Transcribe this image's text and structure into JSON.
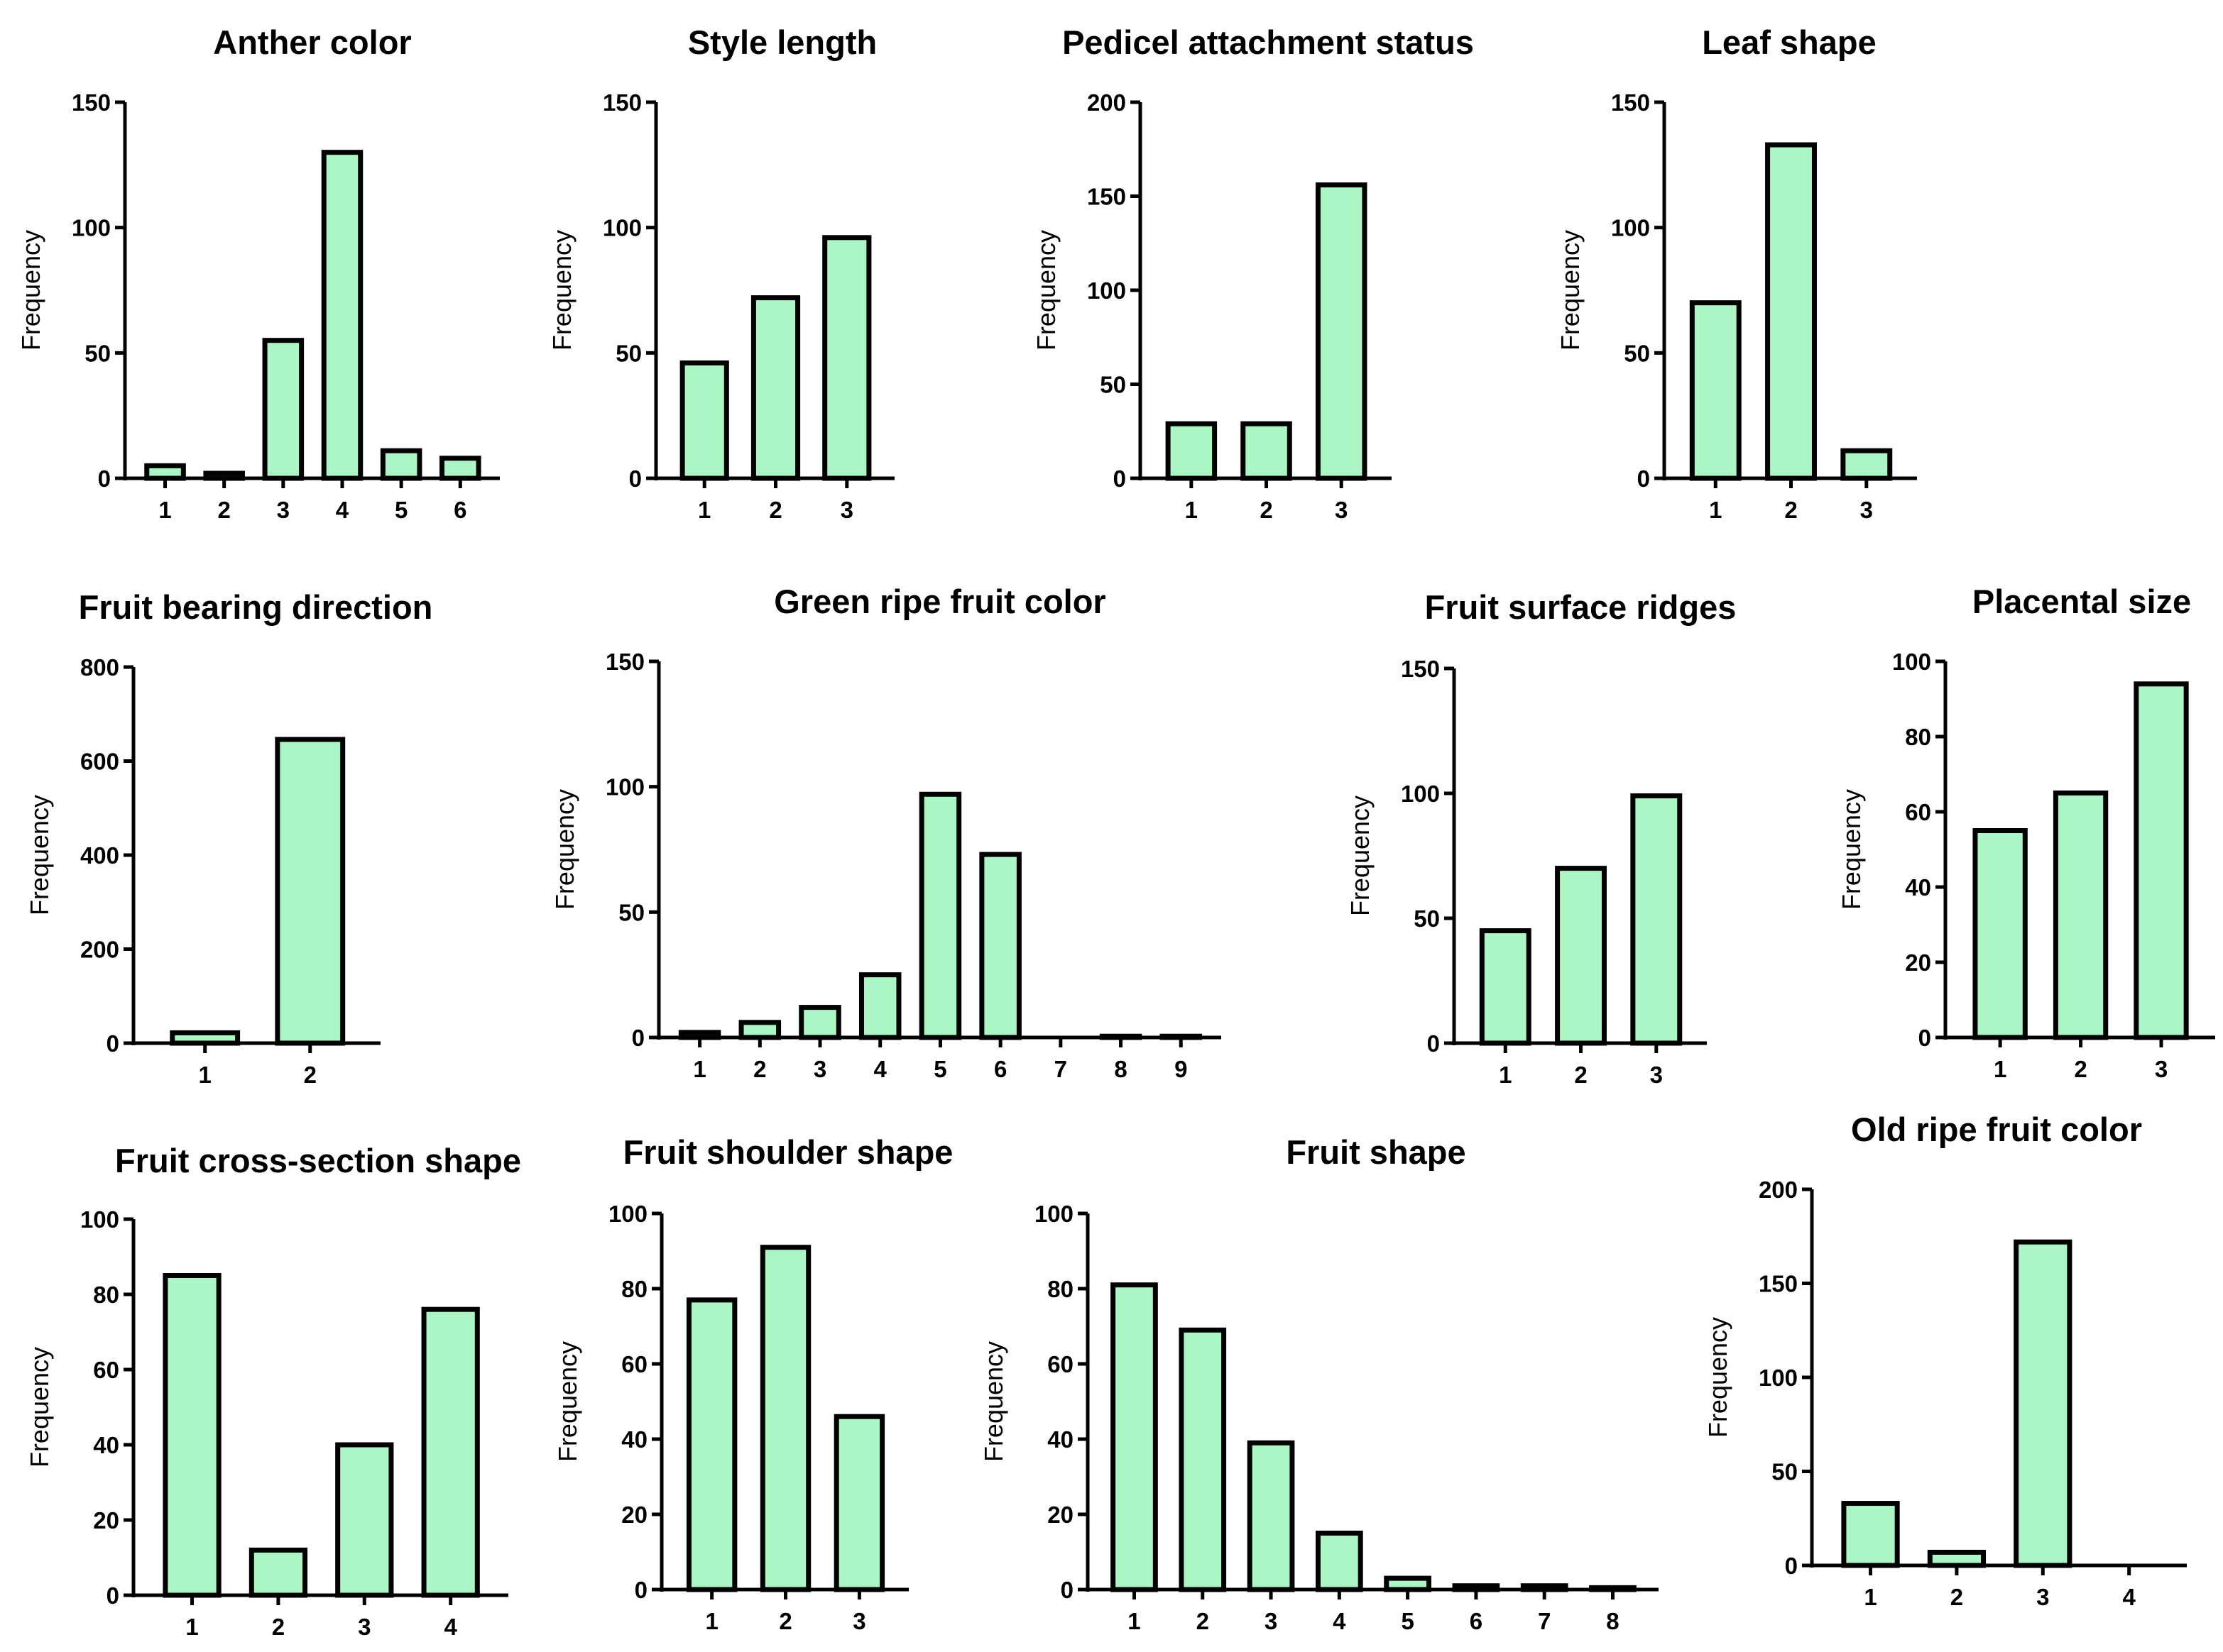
{
  "bar_fill": "#aaf6c4",
  "stroke": "#000000",
  "chart_data": [
    {
      "type": "bar",
      "title": "Anther color",
      "ylabel": "Frequency",
      "xlabel": "",
      "categories": [
        "1",
        "2",
        "3",
        "4",
        "5",
        "6"
      ],
      "values": [
        5,
        2,
        55,
        130,
        11,
        8
      ],
      "ylim": [
        0,
        150
      ],
      "yticks": [
        0,
        50,
        100,
        150
      ]
    },
    {
      "type": "bar",
      "title": "Style length",
      "ylabel": "Frequency",
      "xlabel": "",
      "categories": [
        "1",
        "2",
        "3"
      ],
      "values": [
        46,
        72,
        96
      ],
      "ylim": [
        0,
        150
      ],
      "yticks": [
        0,
        50,
        100,
        150
      ]
    },
    {
      "type": "bar",
      "title": "Pedicel attachment status",
      "ylabel": "Frequency",
      "xlabel": "",
      "categories": [
        "1",
        "2",
        "3"
      ],
      "values": [
        29,
        29,
        156
      ],
      "ylim": [
        0,
        200
      ],
      "yticks": [
        0,
        50,
        100,
        150,
        200
      ]
    },
    {
      "type": "bar",
      "title": "Leaf shape",
      "ylabel": "Frequency",
      "xlabel": "",
      "categories": [
        "1",
        "2",
        "3"
      ],
      "values": [
        70,
        133,
        11
      ],
      "ylim": [
        0,
        150
      ],
      "yticks": [
        0,
        50,
        100,
        150
      ]
    },
    {
      "type": "bar",
      "title": "Fruit bearing direction",
      "ylabel": "Frequency",
      "xlabel": "",
      "categories": [
        "1",
        "2"
      ],
      "values": [
        22,
        646
      ],
      "ylim": [
        0,
        800
      ],
      "yticks": [
        0,
        200,
        400,
        600,
        800
      ]
    },
    {
      "type": "bar",
      "title": "Green ripe fruit color",
      "ylabel": "Frequency",
      "xlabel": "",
      "categories": [
        "1",
        "2",
        "3",
        "4",
        "5",
        "6",
        "7",
        "8",
        "9"
      ],
      "values": [
        2,
        6,
        12,
        25,
        97,
        73,
        0,
        0.5,
        0.5
      ],
      "ylim": [
        0,
        150
      ],
      "yticks": [
        0,
        50,
        100,
        150
      ]
    },
    {
      "type": "bar",
      "title": "Fruit surface ridges",
      "ylabel": "Frequency",
      "xlabel": "",
      "categories": [
        "1",
        "2",
        "3"
      ],
      "values": [
        45,
        70,
        99
      ],
      "ylim": [
        0,
        150
      ],
      "yticks": [
        0,
        50,
        100,
        150
      ]
    },
    {
      "type": "bar",
      "title": "Placental size",
      "ylabel": "Frequency",
      "xlabel": "",
      "categories": [
        "1",
        "2",
        "3"
      ],
      "values": [
        55,
        65,
        94
      ],
      "ylim": [
        0,
        100
      ],
      "yticks": [
        0,
        20,
        40,
        60,
        80,
        100
      ]
    },
    {
      "type": "bar",
      "title": "Fruit cross-section shape",
      "ylabel": "Frequency",
      "xlabel": "",
      "categories": [
        "1",
        "2",
        "3",
        "4"
      ],
      "values": [
        85,
        12,
        40,
        76
      ],
      "ylim": [
        0,
        100
      ],
      "yticks": [
        0,
        20,
        40,
        60,
        80,
        100
      ]
    },
    {
      "type": "bar",
      "title": "Fruit shoulder shape",
      "ylabel": "Frequency",
      "xlabel": "",
      "categories": [
        "1",
        "2",
        "3"
      ],
      "values": [
        77,
        91,
        46
      ],
      "ylim": [
        0,
        100
      ],
      "yticks": [
        0,
        20,
        40,
        60,
        80,
        100
      ]
    },
    {
      "type": "bar",
      "title": "Fruit shape",
      "ylabel": "Frequency",
      "xlabel": "",
      "categories": [
        "1",
        "2",
        "3",
        "4",
        "5",
        "6",
        "7",
        "8"
      ],
      "values": [
        81,
        69,
        39,
        15,
        3,
        1,
        1,
        0.5
      ],
      "ylim": [
        0,
        100
      ],
      "yticks": [
        0,
        20,
        40,
        60,
        80,
        100
      ]
    },
    {
      "type": "bar",
      "title": "Old ripe fruit color",
      "ylabel": "Frequency",
      "xlabel": "",
      "categories": [
        "1",
        "2",
        "3",
        "4"
      ],
      "values": [
        33,
        7,
        172,
        0
      ],
      "ylim": [
        0,
        200
      ],
      "yticks": [
        0,
        50,
        100,
        150,
        200
      ]
    }
  ]
}
